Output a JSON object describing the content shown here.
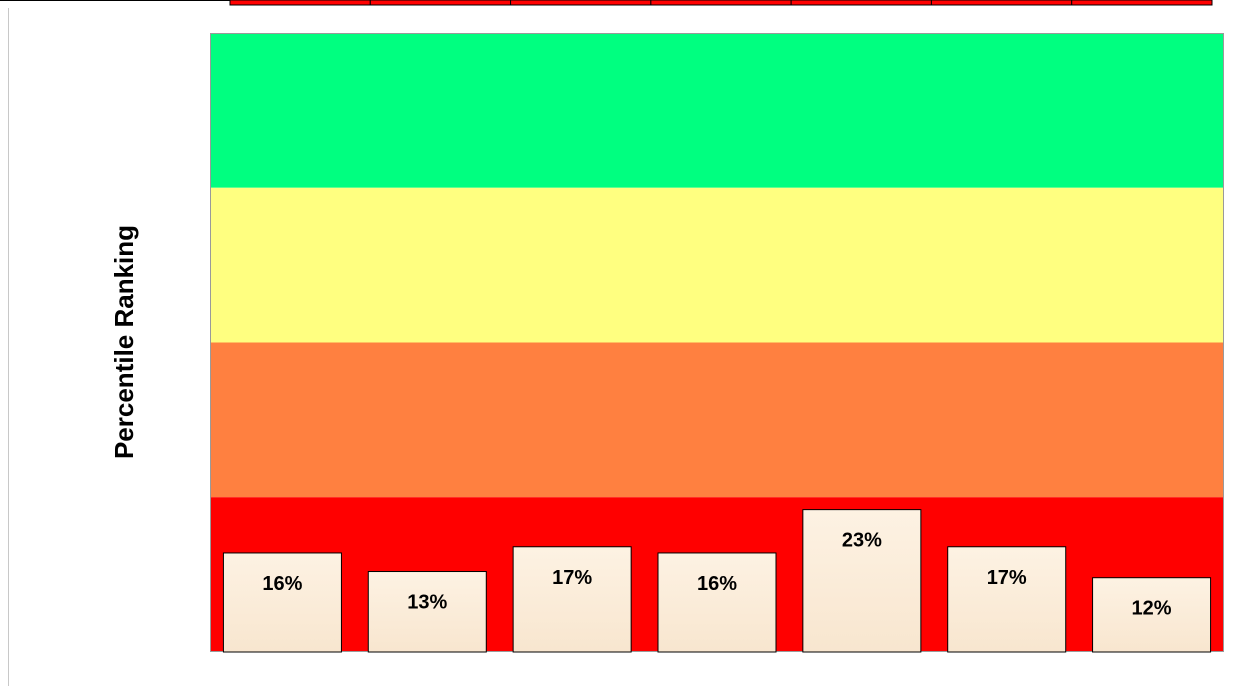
{
  "chart_data": {
    "type": "bar",
    "ylabel": "Percentile Ranking",
    "xlabel": "",
    "ylim": [
      0,
      100
    ],
    "bands": [
      {
        "from": 75,
        "to": 100,
        "color": "#00ff80"
      },
      {
        "from": 50,
        "to": 75,
        "color": "#ffff80"
      },
      {
        "from": 25,
        "to": 50,
        "color": "#ff8040"
      },
      {
        "from": 0,
        "to": 25,
        "color": "#ff0000"
      }
    ],
    "values": [
      16,
      13,
      17,
      16,
      23,
      17,
      12
    ],
    "data_labels": [
      "16%",
      "13%",
      "17%",
      "16%",
      "23%",
      "17%",
      "12%"
    ],
    "bar_color": "#fbebd6",
    "grid": false,
    "legend": false
  },
  "header_strip": {
    "cell_color": "#ff0000",
    "cell_count": 7
  }
}
